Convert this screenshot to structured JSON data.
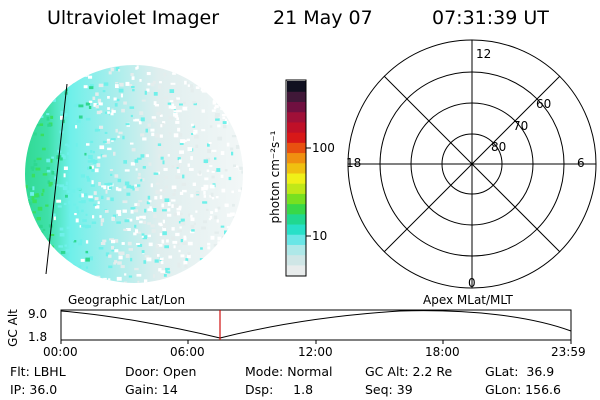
{
  "header": {
    "instrument": "Ultraviolet Imager",
    "date": "21 May 07",
    "time": "07:31:39 UT"
  },
  "colorbar": {
    "unit_label": "photon cm⁻²s⁻¹",
    "ticks": [
      "100",
      "10"
    ],
    "colors": [
      "#e8ecec",
      "#cfe6e6",
      "#aee8e8",
      "#6ae6e6",
      "#28e0c8",
      "#20d890",
      "#38d848",
      "#78e020",
      "#c0e818",
      "#f0f018",
      "#f0c010",
      "#f09010",
      "#e85010",
      "#d81818",
      "#c01028",
      "#a01038",
      "#701040",
      "#401838",
      "#101020"
    ]
  },
  "polar": {
    "mlt_labels": [
      "12",
      "18",
      "6",
      "0"
    ],
    "lat_labels": [
      "60",
      "70",
      "80"
    ]
  },
  "image": {
    "colors": {
      "light": "#e4eded",
      "cyan": "#6ff0ea",
      "green": "#2ed890",
      "greenbright": "#38e060"
    }
  },
  "timeline": {
    "y_axis_label": "GC Alt",
    "y_ticks": [
      "9.0",
      "1.8"
    ],
    "left_title": "Geographic Lat/Lon",
    "right_title": "Apex MLat/MLT",
    "x_ticks": [
      "00:00",
      "06:00",
      "12:00",
      "18:00",
      "23:59"
    ],
    "marker_color": "#d01010"
  },
  "info_rows": [
    [
      "Flt: LBHL",
      "Door: Open",
      "Mode: Normal",
      "GC Alt: 2.2 Re",
      "GLat:  36.9"
    ],
    [
      "IP: 36.0",
      "Gain: 14",
      "Dsp:     1.8",
      "Seq: 39",
      "GLon: 156.6"
    ]
  ]
}
